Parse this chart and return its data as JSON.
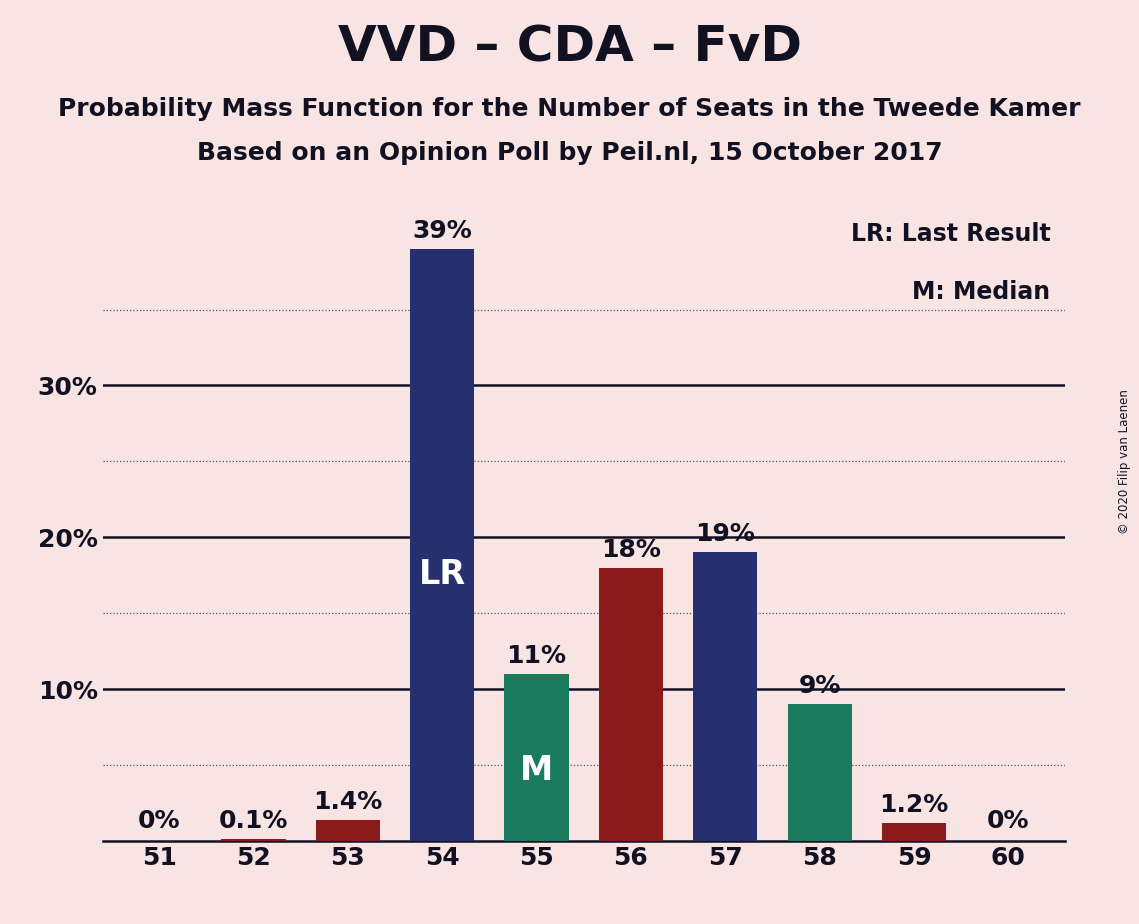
{
  "title": "VVD – CDA – FvD",
  "subtitle1": "Probability Mass Function for the Number of Seats in the Tweede Kamer",
  "subtitle2": "Based on an Opinion Poll by Peil.nl, 15 October 2017",
  "copyright": "© 2020 Filip van Laenen",
  "legend_lr": "LR: Last Result",
  "legend_m": "M: Median",
  "categories": [
    51,
    52,
    53,
    54,
    55,
    56,
    57,
    58,
    59,
    60
  ],
  "values": [
    0.0,
    0.1,
    1.4,
    39.0,
    11.0,
    18.0,
    19.0,
    9.0,
    1.2,
    0.0
  ],
  "labels": [
    "0%",
    "0.1%",
    "1.4%",
    "39%",
    "11%",
    "18%",
    "19%",
    "9%",
    "1.2%",
    "0%"
  ],
  "bar_colors": [
    "#8B1A1A",
    "#8B1A1A",
    "#8B1A1A",
    "#27306E",
    "#1A7A5E",
    "#8B1A1A",
    "#27306E",
    "#1A7A5E",
    "#8B1A1A",
    "#8B1A1A"
  ],
  "lr_bar": 3,
  "median_bar": 4,
  "lr_label": "LR",
  "median_label": "M",
  "background_color": "#F9E4E4",
  "ylim": [
    0,
    42
  ],
  "grid_yticks": [
    5,
    15,
    25,
    35
  ],
  "axis_line_yticks": [
    10,
    20,
    30
  ],
  "ytick_vals": [
    10,
    20,
    30
  ],
  "ytick_labels_show": [
    "10%",
    "20%",
    "30%"
  ],
  "title_fontsize": 36,
  "subtitle_fontsize": 18,
  "bar_label_fontsize": 18,
  "inner_label_fontsize": 24,
  "tick_fontsize": 18
}
